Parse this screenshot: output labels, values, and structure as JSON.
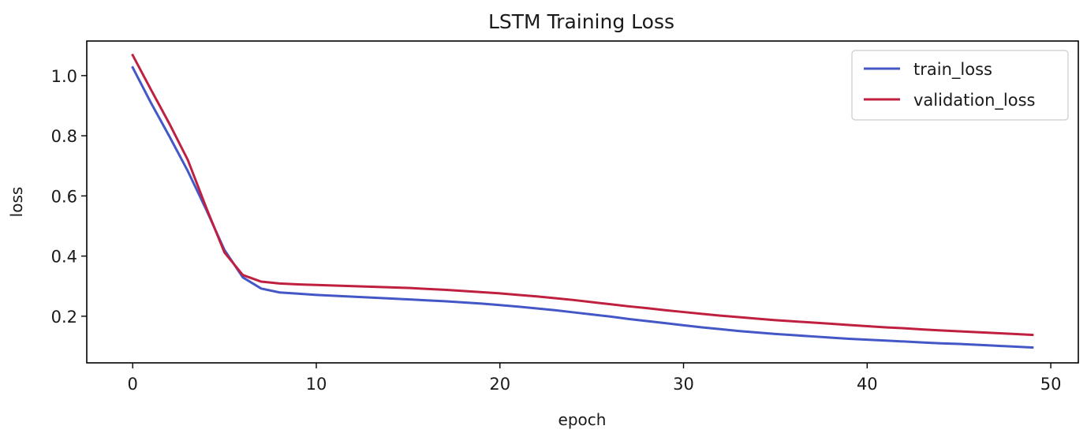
{
  "chart_data": {
    "type": "line",
    "title": "LSTM Training Loss",
    "xlabel": "epoch",
    "ylabel": "loss",
    "xlim": [
      -2.5,
      51.5
    ],
    "ylim": [
      0.045,
      1.115
    ],
    "xticks": [
      0,
      10,
      20,
      30,
      40,
      50
    ],
    "yticks": [
      0.2,
      0.4,
      0.6,
      0.8,
      1.0
    ],
    "xtick_labels": [
      "0",
      "10",
      "20",
      "30",
      "40",
      "50"
    ],
    "ytick_labels": [
      "0.2",
      "0.4",
      "0.6",
      "0.8",
      "1.0"
    ],
    "grid": false,
    "legend_position": "top-right",
    "x": [
      0,
      1,
      2,
      3,
      4,
      5,
      6,
      7,
      8,
      9,
      10,
      11,
      12,
      13,
      14,
      15,
      16,
      17,
      18,
      19,
      20,
      21,
      22,
      23,
      24,
      25,
      26,
      27,
      28,
      29,
      30,
      31,
      32,
      33,
      34,
      35,
      36,
      37,
      38,
      39,
      40,
      41,
      42,
      43,
      44,
      45,
      46,
      47,
      48,
      49
    ],
    "series": [
      {
        "name": "train_loss",
        "color": "#4457c7",
        "values": [
          1.027,
          0.909,
          0.798,
          0.683,
          0.555,
          0.42,
          0.329,
          0.292,
          0.279,
          0.275,
          0.271,
          0.268,
          0.265,
          0.262,
          0.259,
          0.256,
          0.253,
          0.25,
          0.246,
          0.242,
          0.237,
          0.232,
          0.226,
          0.22,
          0.213,
          0.206,
          0.199,
          0.191,
          0.184,
          0.177,
          0.17,
          0.163,
          0.157,
          0.151,
          0.146,
          0.141,
          0.137,
          0.133,
          0.129,
          0.125,
          0.122,
          0.119,
          0.116,
          0.113,
          0.11,
          0.108,
          0.105,
          0.102,
          0.099,
          0.096
        ]
      },
      {
        "name": "validation_loss",
        "color": "#c0203f",
        "values": [
          1.068,
          0.953,
          0.84,
          0.72,
          0.562,
          0.412,
          0.337,
          0.315,
          0.309,
          0.306,
          0.304,
          0.302,
          0.3,
          0.298,
          0.296,
          0.294,
          0.291,
          0.288,
          0.284,
          0.28,
          0.276,
          0.271,
          0.266,
          0.26,
          0.254,
          0.247,
          0.24,
          0.233,
          0.227,
          0.22,
          0.214,
          0.208,
          0.202,
          0.197,
          0.192,
          0.187,
          0.183,
          0.179,
          0.175,
          0.171,
          0.167,
          0.163,
          0.16,
          0.156,
          0.153,
          0.15,
          0.147,
          0.144,
          0.141,
          0.138
        ]
      }
    ]
  }
}
